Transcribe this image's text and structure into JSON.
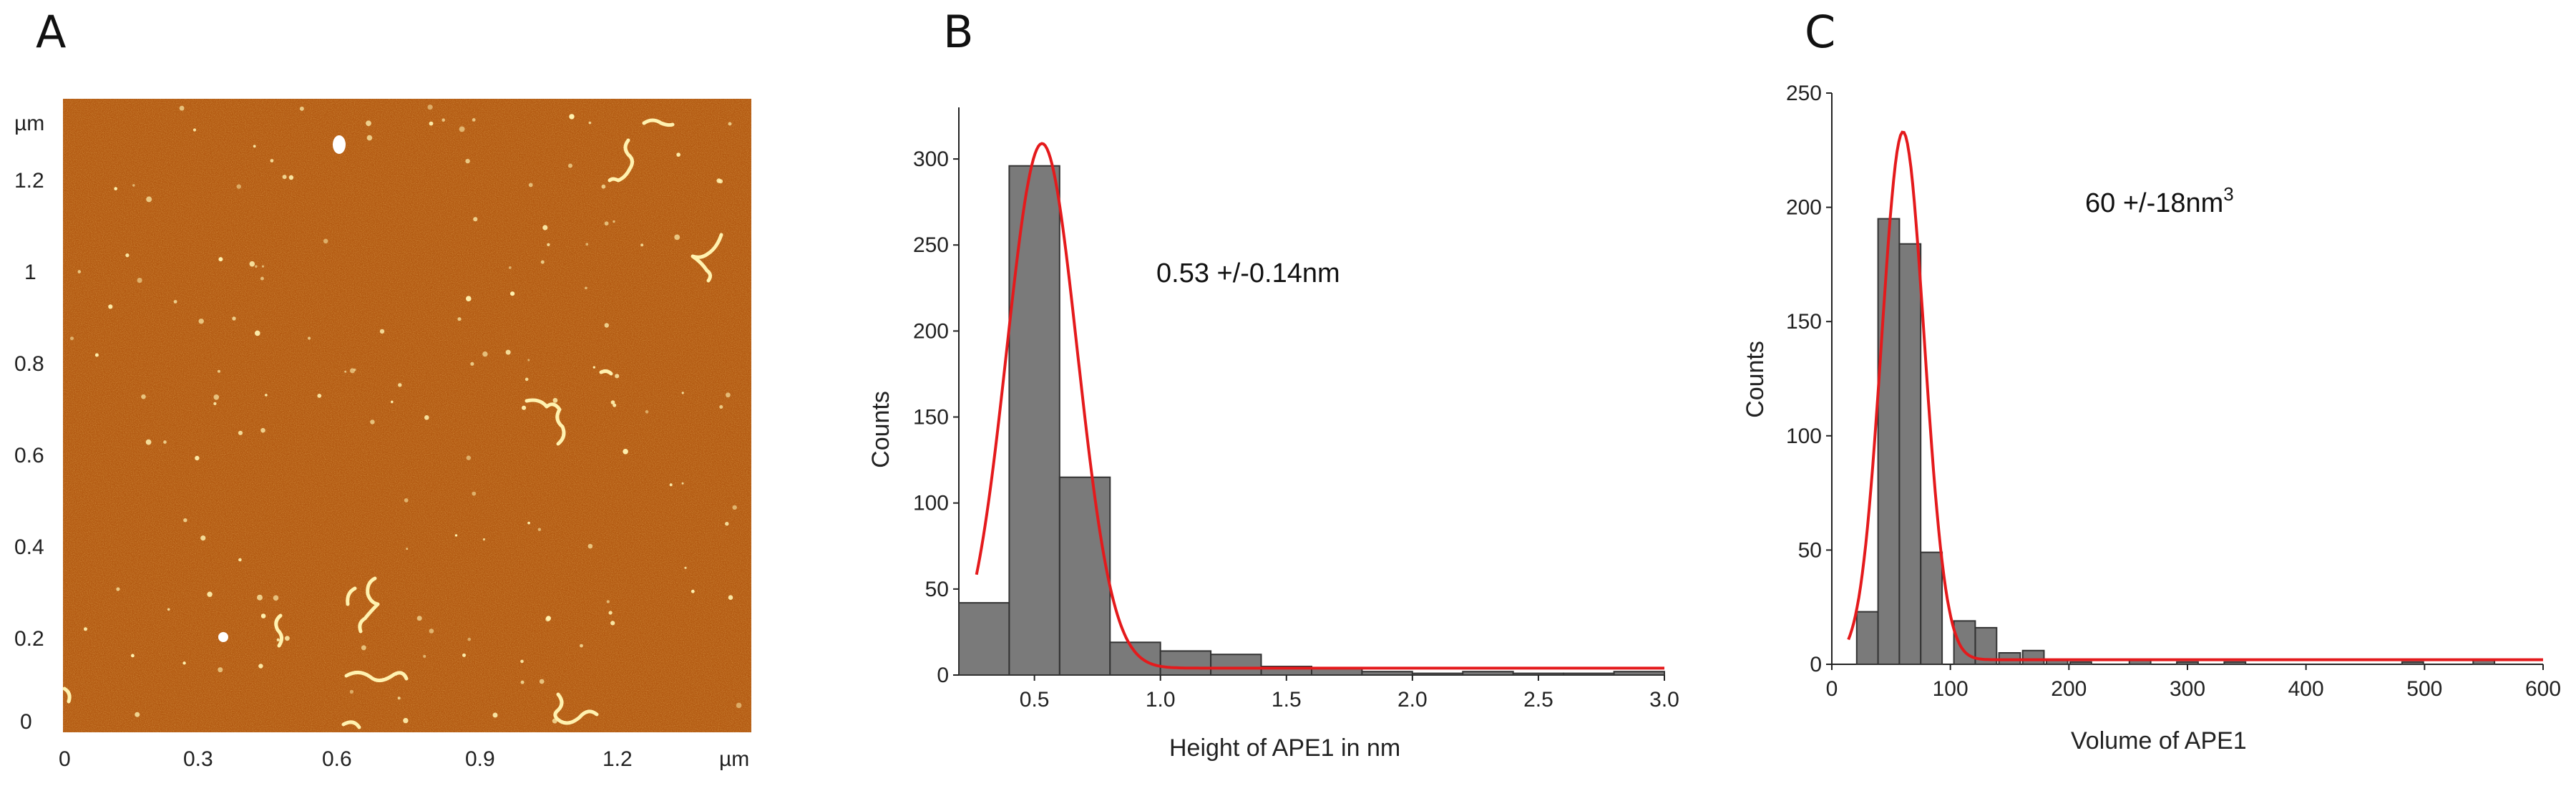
{
  "panels": {
    "a_label": "A",
    "b_label": "B",
    "c_label": "C"
  },
  "afm": {
    "unit_y": "µm",
    "unit_x": "µm",
    "y_ticks": [
      "1.2",
      "1",
      "0.8",
      "0.6",
      "0.4",
      "0.2",
      "0"
    ],
    "x_ticks": [
      "0",
      "0.3",
      "0.6",
      "0.9",
      "1.2"
    ],
    "colors": {
      "base": "#b35a12",
      "dark": "#8c420a",
      "particle": "#fff2b0"
    }
  },
  "chart_data": [
    {
      "type": "bar",
      "xlabel": "Height of APE1 in nm",
      "ylabel": "Counts",
      "annotation": "0.53 +/-0.14nm",
      "xlim": [
        0.2,
        3.0
      ],
      "ylim": [
        0,
        330
      ],
      "x_ticks": [
        0.5,
        1.0,
        1.5,
        2.0,
        2.5,
        3.0
      ],
      "x_tick_labels": [
        "0.5",
        "1.0",
        "1.5",
        "2.0",
        "2.5",
        "3.0"
      ],
      "y_ticks": [
        0,
        50,
        100,
        150,
        200,
        250,
        300
      ],
      "bin_width": 0.2,
      "bins": [
        {
          "x": 0.3,
          "count": 42
        },
        {
          "x": 0.5,
          "count": 296
        },
        {
          "x": 0.7,
          "count": 115
        },
        {
          "x": 0.9,
          "count": 19
        },
        {
          "x": 1.1,
          "count": 14
        },
        {
          "x": 1.3,
          "count": 12
        },
        {
          "x": 1.5,
          "count": 5
        },
        {
          "x": 1.7,
          "count": 4
        },
        {
          "x": 1.9,
          "count": 2
        },
        {
          "x": 2.1,
          "count": 1
        },
        {
          "x": 2.3,
          "count": 2
        },
        {
          "x": 2.5,
          "count": 1
        },
        {
          "x": 2.7,
          "count": 1
        },
        {
          "x": 2.9,
          "count": 2
        }
      ],
      "fit": {
        "type": "gaussian",
        "mean": 0.53,
        "sd": 0.14,
        "amplitude": 305,
        "offset": 4,
        "color": "#e41a1c"
      },
      "bar_color": "#7a7a7a"
    },
    {
      "type": "bar",
      "xlabel": "Volume of  APE1",
      "ylabel": "Counts",
      "annotation": "60 +/-18nm",
      "annotation_sup": "3",
      "xlim": [
        0,
        600
      ],
      "ylim": [
        0,
        250
      ],
      "x_ticks": [
        0,
        100,
        200,
        300,
        400,
        500,
        600
      ],
      "x_tick_labels": [
        "0",
        "100",
        "200",
        "300",
        "400",
        "500",
        "600"
      ],
      "y_ticks": [
        0,
        50,
        100,
        150,
        200,
        250
      ],
      "bin_width": 18,
      "bins": [
        {
          "x": 30,
          "count": 23
        },
        {
          "x": 48,
          "count": 195
        },
        {
          "x": 66,
          "count": 184
        },
        {
          "x": 84,
          "count": 49
        },
        {
          "x": 112,
          "count": 19
        },
        {
          "x": 130,
          "count": 16
        },
        {
          "x": 150,
          "count": 5
        },
        {
          "x": 170,
          "count": 6
        },
        {
          "x": 190,
          "count": 2
        },
        {
          "x": 210,
          "count": 1
        },
        {
          "x": 260,
          "count": 2
        },
        {
          "x": 300,
          "count": 1
        },
        {
          "x": 340,
          "count": 1
        },
        {
          "x": 490,
          "count": 1
        },
        {
          "x": 550,
          "count": 2
        }
      ],
      "fit": {
        "type": "gaussian",
        "mean": 60,
        "sd": 18,
        "amplitude": 231,
        "offset": 2,
        "color": "#e41a1c"
      },
      "bar_color": "#7a7a7a"
    }
  ]
}
